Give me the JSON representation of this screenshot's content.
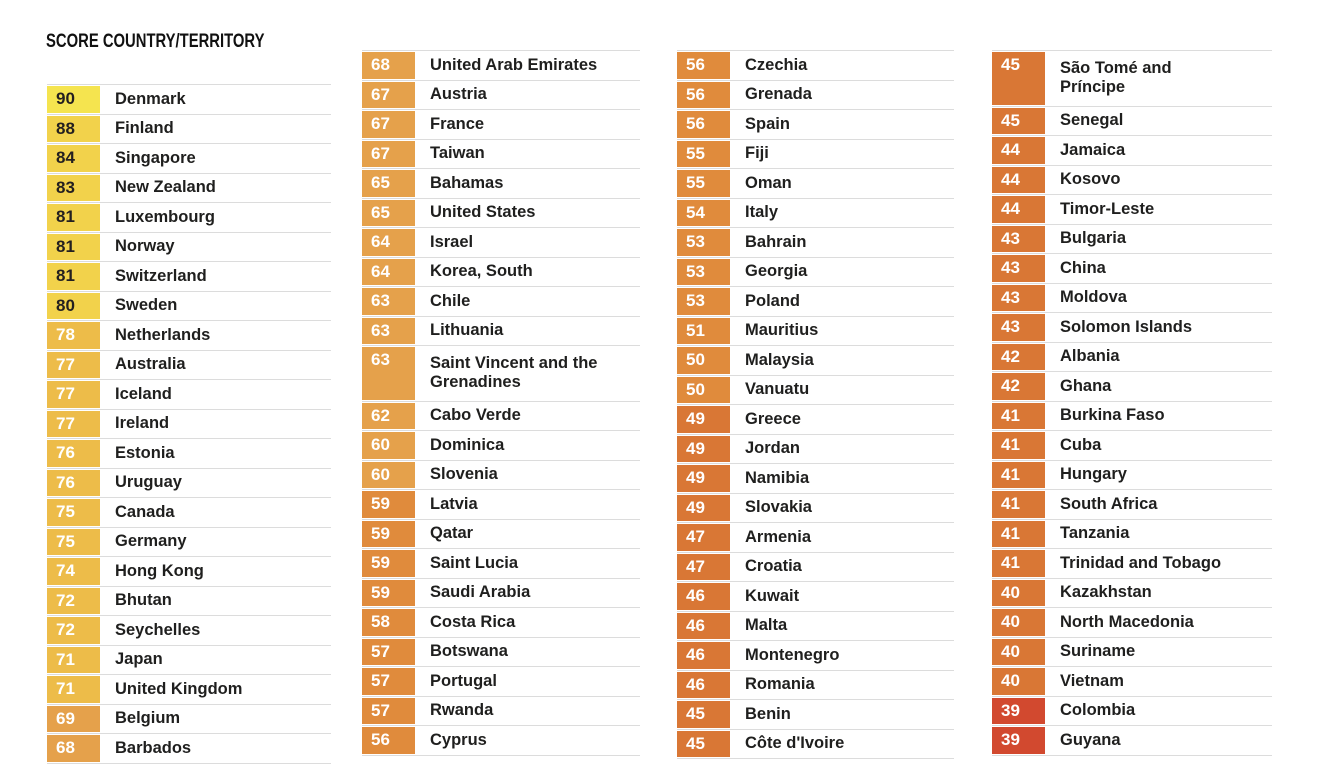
{
  "chart_data": {
    "type": "table",
    "title": "SCORE COUNTRY/TERRITORY",
    "columns_header": [
      "SCORE",
      "COUNTRY/TERRITORY"
    ],
    "tier_colors": {
      "t90": "#F5E44F",
      "t80": "#F2D24B",
      "t70": "#EDBC49",
      "t60": "#E5A14B",
      "t50": "#E08B3C",
      "t40": "#D97735",
      "t30": "#D2492F"
    },
    "score_text_colors": {
      "dark": "#231F20",
      "light": "#FFFFFF"
    },
    "columns": [
      [
        {
          "score": 90,
          "country": "Denmark"
        },
        {
          "score": 88,
          "country": "Finland"
        },
        {
          "score": 84,
          "country": "Singapore"
        },
        {
          "score": 83,
          "country": "New Zealand"
        },
        {
          "score": 81,
          "country": "Luxembourg"
        },
        {
          "score": 81,
          "country": "Norway"
        },
        {
          "score": 81,
          "country": "Switzerland"
        },
        {
          "score": 80,
          "country": "Sweden"
        },
        {
          "score": 78,
          "country": "Netherlands"
        },
        {
          "score": 77,
          "country": "Australia"
        },
        {
          "score": 77,
          "country": "Iceland"
        },
        {
          "score": 77,
          "country": "Ireland"
        },
        {
          "score": 76,
          "country": "Estonia"
        },
        {
          "score": 76,
          "country": "Uruguay"
        },
        {
          "score": 75,
          "country": "Canada"
        },
        {
          "score": 75,
          "country": "Germany"
        },
        {
          "score": 74,
          "country": "Hong Kong"
        },
        {
          "score": 72,
          "country": "Bhutan"
        },
        {
          "score": 72,
          "country": "Seychelles"
        },
        {
          "score": 71,
          "country": "Japan"
        },
        {
          "score": 71,
          "country": "United Kingdom"
        },
        {
          "score": 69,
          "country": "Belgium"
        },
        {
          "score": 68,
          "country": "Barbados"
        }
      ],
      [
        {
          "score": 68,
          "country": "United Arab Emirates"
        },
        {
          "score": 67,
          "country": "Austria"
        },
        {
          "score": 67,
          "country": "France"
        },
        {
          "score": 67,
          "country": "Taiwan"
        },
        {
          "score": 65,
          "country": "Bahamas"
        },
        {
          "score": 65,
          "country": "United States"
        },
        {
          "score": 64,
          "country": "Israel"
        },
        {
          "score": 64,
          "country": "Korea, South"
        },
        {
          "score": 63,
          "country": "Chile"
        },
        {
          "score": 63,
          "country": "Lithuania"
        },
        {
          "score": 63,
          "country": "Saint Vincent and the\nGrenadines"
        },
        {
          "score": 62,
          "country": "Cabo Verde"
        },
        {
          "score": 60,
          "country": "Dominica"
        },
        {
          "score": 60,
          "country": "Slovenia"
        },
        {
          "score": 59,
          "country": "Latvia"
        },
        {
          "score": 59,
          "country": "Qatar"
        },
        {
          "score": 59,
          "country": "Saint Lucia"
        },
        {
          "score": 59,
          "country": "Saudi Arabia"
        },
        {
          "score": 58,
          "country": "Costa Rica"
        },
        {
          "score": 57,
          "country": "Botswana"
        },
        {
          "score": 57,
          "country": "Portugal"
        },
        {
          "score": 57,
          "country": "Rwanda"
        },
        {
          "score": 56,
          "country": "Cyprus"
        }
      ],
      [
        {
          "score": 56,
          "country": "Czechia"
        },
        {
          "score": 56,
          "country": "Grenada"
        },
        {
          "score": 56,
          "country": "Spain"
        },
        {
          "score": 55,
          "country": "Fiji"
        },
        {
          "score": 55,
          "country": "Oman"
        },
        {
          "score": 54,
          "country": "Italy"
        },
        {
          "score": 53,
          "country": "Bahrain"
        },
        {
          "score": 53,
          "country": "Georgia"
        },
        {
          "score": 53,
          "country": "Poland"
        },
        {
          "score": 51,
          "country": "Mauritius"
        },
        {
          "score": 50,
          "country": "Malaysia"
        },
        {
          "score": 50,
          "country": "Vanuatu"
        },
        {
          "score": 49,
          "country": "Greece"
        },
        {
          "score": 49,
          "country": "Jordan"
        },
        {
          "score": 49,
          "country": "Namibia"
        },
        {
          "score": 49,
          "country": "Slovakia"
        },
        {
          "score": 47,
          "country": "Armenia"
        },
        {
          "score": 47,
          "country": "Croatia"
        },
        {
          "score": 46,
          "country": "Kuwait"
        },
        {
          "score": 46,
          "country": "Malta"
        },
        {
          "score": 46,
          "country": "Montenegro"
        },
        {
          "score": 46,
          "country": "Romania"
        },
        {
          "score": 45,
          "country": "Benin"
        },
        {
          "score": 45,
          "country": "Côte d'Ivoire"
        }
      ],
      [
        {
          "score": 45,
          "country": "São Tomé and\nPríncipe"
        },
        {
          "score": 45,
          "country": "Senegal"
        },
        {
          "score": 44,
          "country": "Jamaica"
        },
        {
          "score": 44,
          "country": "Kosovo"
        },
        {
          "score": 44,
          "country": "Timor-Leste"
        },
        {
          "score": 43,
          "country": "Bulgaria"
        },
        {
          "score": 43,
          "country": "China"
        },
        {
          "score": 43,
          "country": "Moldova"
        },
        {
          "score": 43,
          "country": "Solomon Islands"
        },
        {
          "score": 42,
          "country": "Albania"
        },
        {
          "score": 42,
          "country": "Ghana"
        },
        {
          "score": 41,
          "country": "Burkina Faso"
        },
        {
          "score": 41,
          "country": "Cuba"
        },
        {
          "score": 41,
          "country": "Hungary"
        },
        {
          "score": 41,
          "country": "South Africa"
        },
        {
          "score": 41,
          "country": "Tanzania"
        },
        {
          "score": 41,
          "country": "Trinidad and Tobago"
        },
        {
          "score": 40,
          "country": "Kazakhstan"
        },
        {
          "score": 40,
          "country": "North Macedonia"
        },
        {
          "score": 40,
          "country": "Suriname"
        },
        {
          "score": 40,
          "country": "Vietnam"
        },
        {
          "score": 39,
          "country": "Colombia"
        },
        {
          "score": 39,
          "country": "Guyana"
        }
      ]
    ]
  }
}
